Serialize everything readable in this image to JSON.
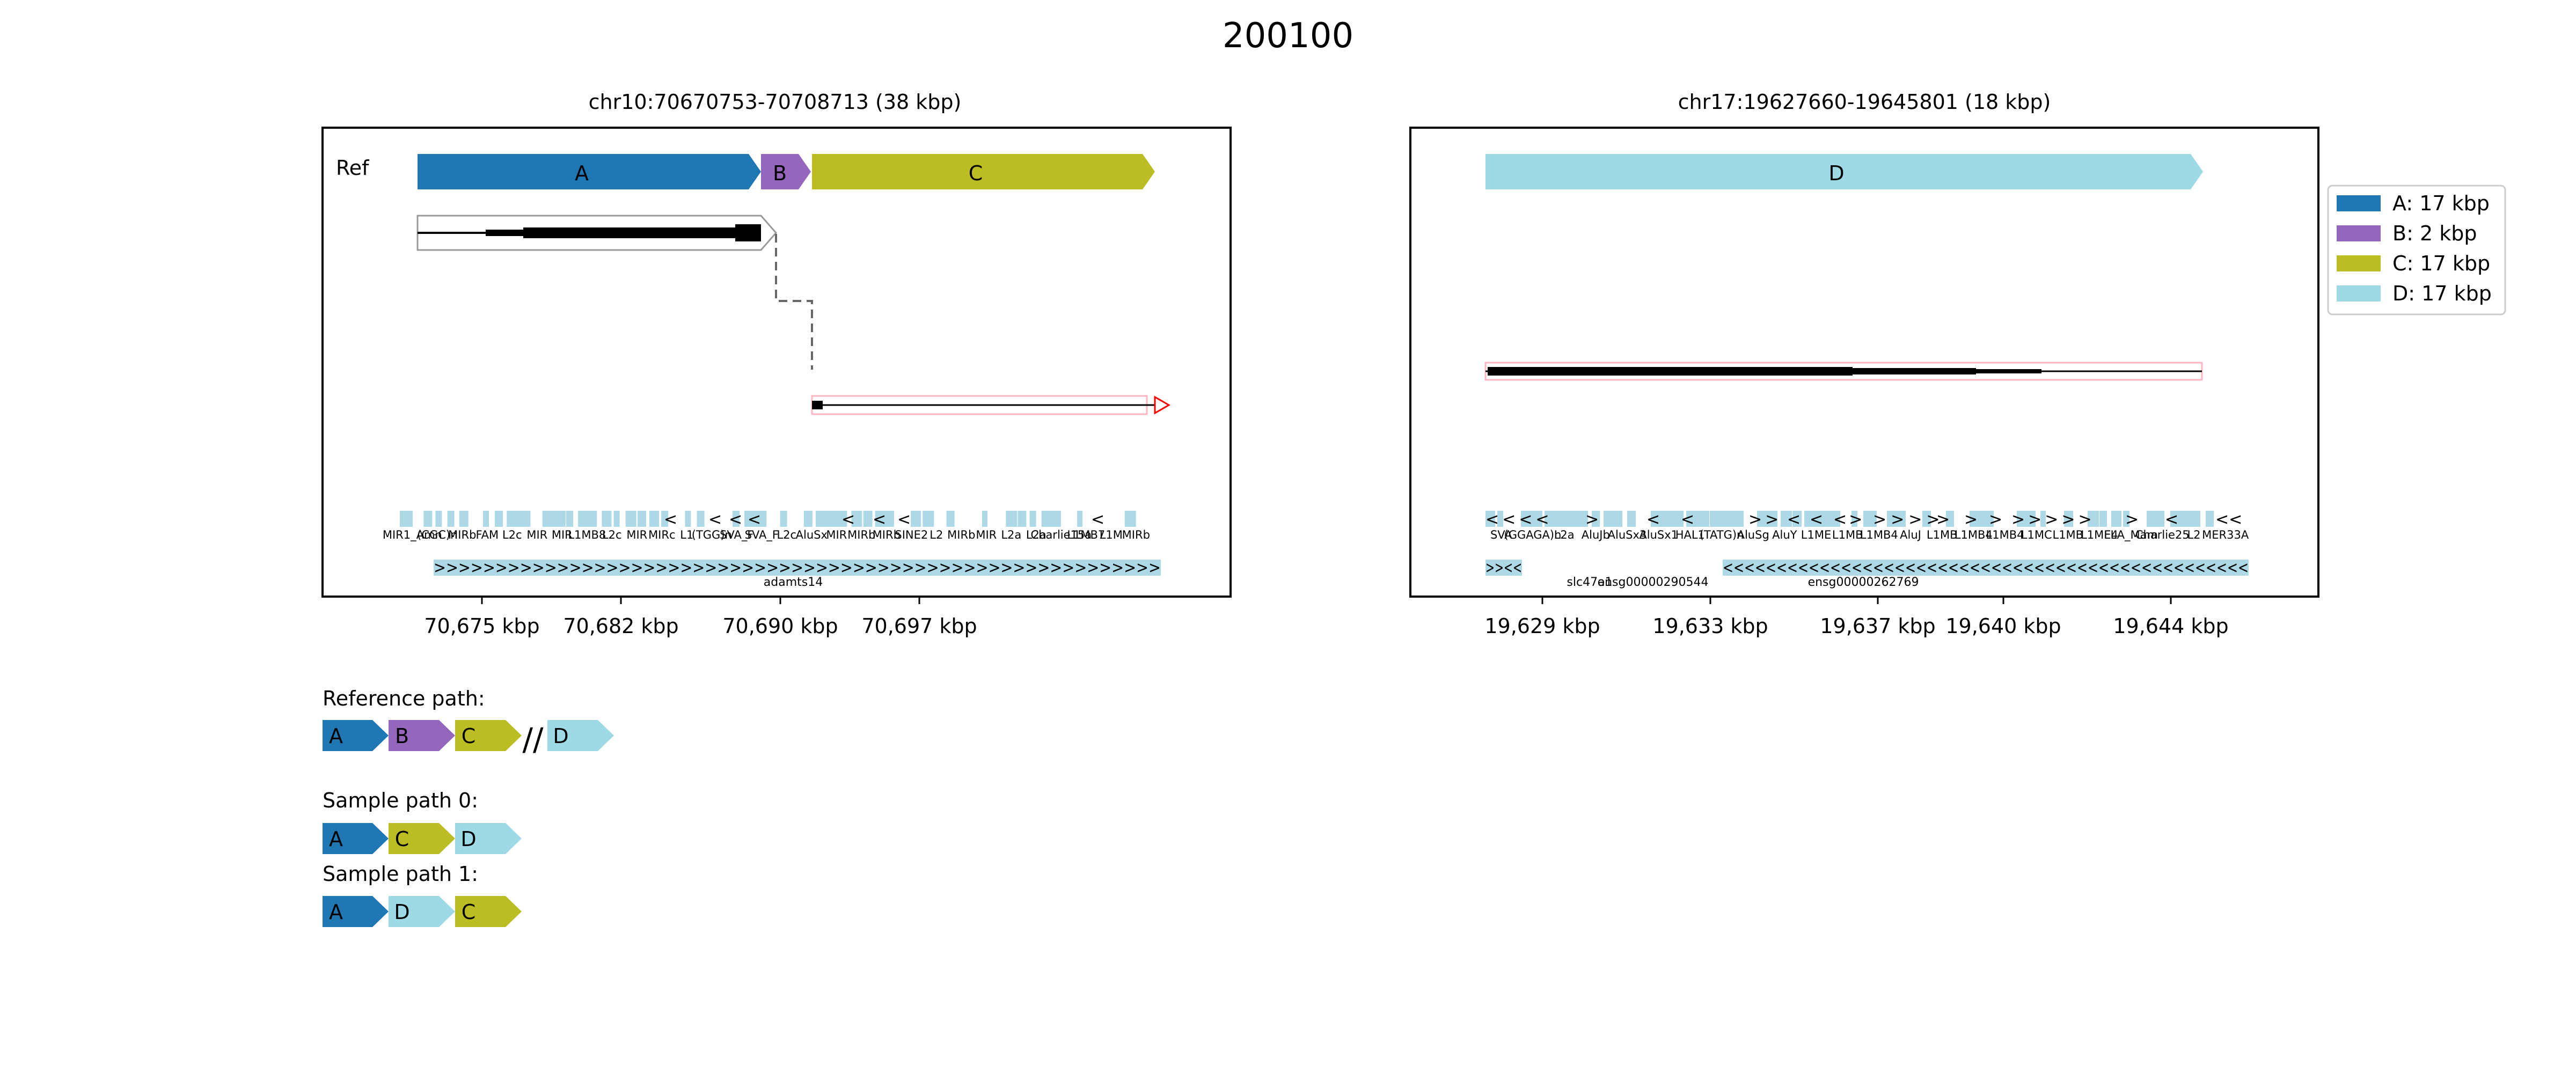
{
  "title": "200100",
  "colors": {
    "A": "#1f77b4",
    "B": "#9467bd",
    "C": "#bcbd22",
    "D": "#9edae5",
    "repeat": "#add8e6",
    "transcript_outline": "#999999",
    "alt_transcript_outline": "#ff0000",
    "gene_box": "#add8e6"
  },
  "panels": [
    {
      "id": "left",
      "title": "chr10:70670753-70708713 (38 kbp)",
      "ref_label": "Ref",
      "x_ticks": [
        "70,675 kbp",
        "70,682 kbp",
        "70,690 kbp",
        "70,697 kbp"
      ],
      "segments": [
        {
          "name": "A"
        },
        {
          "name": "B"
        },
        {
          "name": "C"
        }
      ],
      "repeat_labels": [
        "MIR1_Amn",
        "(CGC)n",
        "MIRb",
        "FAM",
        "L2c",
        "MIR",
        "MIR",
        "L1MB8",
        "L2c",
        "MIR",
        "MIRc",
        "L1",
        "(TGG)n",
        "SVA_F",
        "SVA_F",
        "L2c",
        "AluSx",
        "MIR",
        "MIRb",
        "MIRb",
        "SINE2",
        "L2",
        "MIRb",
        "MIR",
        "L2a",
        "L2a",
        "Charlie15a",
        "L1MB7",
        "L1M",
        "MIRb"
      ],
      "repeat_strands": [
        "<",
        "<",
        "<",
        "<",
        "<",
        "<",
        "<",
        "<"
      ],
      "gene_label": "adamts14",
      "gene_arrows": ">>>>>>>>>>>>>>>>>>>>>>>>>>>>>>>>>>>>>>>>>>>>>>>>>>>>>>>>>>>"
    },
    {
      "id": "right",
      "title": "chr17:19627660-19645801 (18 kbp)",
      "x_ticks": [
        "19,629 kbp",
        "19,633 kbp",
        "19,637 kbp",
        "19,640 kbp",
        "19,644 kbp"
      ],
      "segments": [
        {
          "name": "D"
        }
      ],
      "repeat_labels": [
        "SVA",
        "(GGAGA)n",
        "L2a",
        "AluJb",
        "AluSx3",
        "AluSx1",
        "HAL1",
        "(TATG)n",
        "AluSg",
        "AluY",
        "L1ME",
        "L1MB",
        "L1MB4",
        "AluJ",
        "L1MB",
        "L1MB4",
        "L1MB4",
        "L1MC",
        "L1MB",
        "L1ME4",
        "FLA_Mam",
        "Charlie25",
        "L2",
        "MER33A"
      ],
      "repeat_strands": [
        "<<<<",
        ">",
        "<",
        "<",
        ">>",
        "<",
        "<",
        "<>",
        ">>>>",
        ">",
        ">",
        ">",
        ">>>>>",
        ">",
        "<",
        "<<"
      ],
      "gene_labels": [
        "slc47a1",
        "ensg00000290544",
        "ensg00000262769"
      ],
      "gene_arrows_left": ">><<",
      "gene_arrows": "<<<<<<<<<<<<<<<<<<<<<<<<<<<<<<<<<<<<<<<<<<<<<<<<<"
    }
  ],
  "legend": [
    {
      "key": "A",
      "label": "A: 17 kbp"
    },
    {
      "key": "B",
      "label": "B: 2 kbp"
    },
    {
      "key": "C",
      "label": "C: 17 kbp"
    },
    {
      "key": "D",
      "label": "D: 17 kbp"
    }
  ],
  "paths": [
    {
      "title": "Reference path:",
      "segments": [
        "A",
        "B",
        "C",
        "//",
        "D"
      ]
    },
    {
      "title": "Sample path 0:",
      "segments": [
        "A",
        "C",
        "D"
      ]
    },
    {
      "title": "Sample path 1:",
      "segments": [
        "A",
        "D",
        "C"
      ]
    }
  ]
}
